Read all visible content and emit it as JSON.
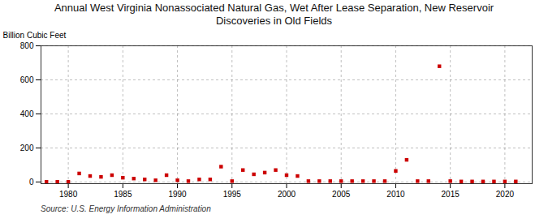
{
  "chart_data": {
    "type": "scatter",
    "title": "Annual West Virginia Nonassociated Natural Gas, Wet After Lease Separation, New Reservoir\nDiscoveries in Old Fields",
    "ylabel": "Billion Cubic Feet",
    "source": "Source: U.S. Energy Information Administration",
    "x": [
      1978,
      1979,
      1980,
      1981,
      1982,
      1983,
      1984,
      1985,
      1986,
      1987,
      1988,
      1989,
      1990,
      1991,
      1992,
      1993,
      1994,
      1995,
      1996,
      1997,
      1998,
      1999,
      2000,
      2001,
      2002,
      2003,
      2004,
      2005,
      2006,
      2007,
      2008,
      2009,
      2010,
      2011,
      2012,
      2013,
      2014,
      2015,
      2016,
      2017,
      2018,
      2019,
      2020,
      2021
    ],
    "values": [
      1,
      1,
      1,
      50,
      35,
      30,
      40,
      25,
      20,
      15,
      10,
      40,
      10,
      5,
      15,
      15,
      90,
      5,
      70,
      45,
      55,
      70,
      40,
      35,
      5,
      5,
      5,
      5,
      5,
      5,
      5,
      5,
      65,
      130,
      5,
      5,
      680,
      5,
      3,
      3,
      3,
      3,
      3,
      3
    ],
    "color": "#cc0000",
    "marker": "square",
    "xlim": [
      1977.5,
      2022.5
    ],
    "ylim": [
      -10,
      800
    ],
    "xticks": [
      1980,
      1985,
      1990,
      1995,
      2000,
      2005,
      2010,
      2015,
      2020
    ],
    "yticks": [
      0,
      200,
      400,
      600,
      800
    ],
    "grid": true
  }
}
